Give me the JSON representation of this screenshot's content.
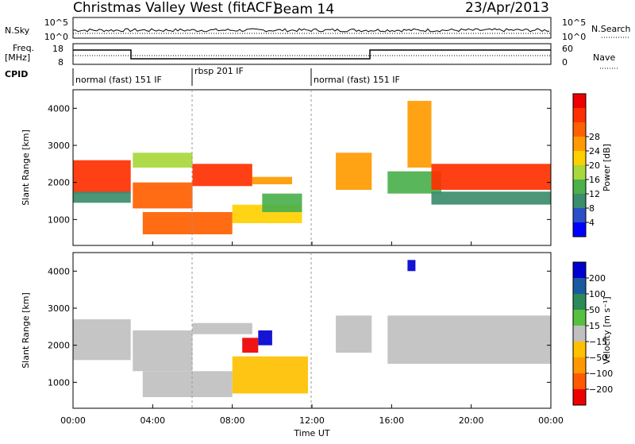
{
  "header": {
    "station": "Christmas Valley West (fitACF)",
    "beam": "Beam 14",
    "date": "23/Apr/2013"
  },
  "noise_panel": {
    "left_label": "N.Sky",
    "right_label": "N.Search",
    "left_ticks": [
      "10^5",
      "10^0"
    ],
    "right_ticks": [
      "10^5",
      "10^0"
    ]
  },
  "freq_panel": {
    "left_label_1": "Freq.",
    "left_label_2": "[MHz]",
    "right_label": "Nave",
    "left_ticks": [
      "18",
      "8"
    ],
    "right_ticks": [
      "60",
      "0"
    ]
  },
  "cpid": {
    "label": "CPID",
    "segments": [
      {
        "name": "normal (fast) 151 IF",
        "start_h": 0,
        "end_h": 6
      },
      {
        "name": "rbsp 201 IF",
        "start_h": 6,
        "end_h": 12
      },
      {
        "name": "normal (fast) 151 IF",
        "start_h": 12,
        "end_h": 24
      }
    ]
  },
  "axes": {
    "ylabel": "Slant Range [km]",
    "xlabel": "Time UT",
    "x_ticks": [
      "00:00",
      "04:00",
      "08:00",
      "12:00",
      "16:00",
      "20:00",
      "00:00"
    ],
    "y_ticks": [
      "1000",
      "2000",
      "3000",
      "4000"
    ]
  },
  "power_scale": {
    "label": "Power [dB]",
    "ticks": [
      "4",
      "8",
      "12",
      "16",
      "20",
      "24",
      "28"
    ],
    "colors": [
      "#0000ff",
      "#2a50c8",
      "#3c8c6e",
      "#4cb04c",
      "#a8d83c",
      "#ffd000",
      "#ff9a00",
      "#ff6000",
      "#ff3000",
      "#ee0000"
    ]
  },
  "velocity_scale": {
    "label": "Velocity [m s⁻¹]",
    "ticks": [
      "200",
      "100",
      "50",
      "15",
      "−15",
      "−50",
      "−100",
      "−200"
    ],
    "colors": [
      "#0000d0",
      "#1a5aa0",
      "#2a8a5a",
      "#58c040",
      "#c0c0c0",
      "#ffc000",
      "#ff9800",
      "#ff5a00",
      "#ee0000"
    ]
  },
  "chart_data": [
    {
      "type": "heatmap",
      "name": "Power",
      "x_unit": "hours UT",
      "xlim": [
        0,
        24
      ],
      "ylim": [
        300,
        4500
      ],
      "bands": [
        {
          "t0": 0.0,
          "t1": 2.9,
          "r0": 1700,
          "r1": 2600,
          "value": 26
        },
        {
          "t0": 0.0,
          "t1": 2.9,
          "r0": 1450,
          "r1": 1750,
          "value": 6
        },
        {
          "t0": 3.0,
          "t1": 6.0,
          "r0": 1300,
          "r1": 2000,
          "value": 22
        },
        {
          "t0": 3.0,
          "t1": 6.0,
          "r0": 2400,
          "r1": 2800,
          "value": 14
        },
        {
          "t0": 6.0,
          "t1": 9.0,
          "r0": 1900,
          "r1": 2500,
          "value": 24
        },
        {
          "t0": 9.0,
          "t1": 11.0,
          "r0": 1950,
          "r1": 2150,
          "value": 20
        },
        {
          "t0": 3.5,
          "t1": 8.0,
          "r0": 600,
          "r1": 1200,
          "value": 22
        },
        {
          "t0": 8.0,
          "t1": 11.5,
          "r0": 900,
          "r1": 1400,
          "value": 16
        },
        {
          "t0": 9.5,
          "t1": 11.5,
          "r0": 1200,
          "r1": 1700,
          "value": 10
        },
        {
          "t0": 13.2,
          "t1": 15.0,
          "r0": 1800,
          "r1": 2800,
          "value": 18
        },
        {
          "t0": 15.8,
          "t1": 18.5,
          "r0": 1700,
          "r1": 2300,
          "value": 10
        },
        {
          "t0": 16.8,
          "t1": 18.0,
          "r0": 2400,
          "r1": 4200,
          "value": 20
        },
        {
          "t0": 18.0,
          "t1": 24.0,
          "r0": 1800,
          "r1": 2500,
          "value": 26
        },
        {
          "t0": 18.0,
          "t1": 24.0,
          "r0": 1400,
          "r1": 1750,
          "value": 8
        }
      ]
    },
    {
      "type": "heatmap",
      "name": "Velocity",
      "x_unit": "hours UT",
      "xlim": [
        0,
        24
      ],
      "ylim": [
        300,
        4500
      ],
      "bands": [
        {
          "t0": 0.0,
          "t1": 2.9,
          "r0": 1600,
          "r1": 2700,
          "value": 0
        },
        {
          "t0": 3.0,
          "t1": 6.0,
          "r0": 1300,
          "r1": 2400,
          "value": 0
        },
        {
          "t0": 3.5,
          "t1": 8.0,
          "r0": 600,
          "r1": 1300,
          "value": 0
        },
        {
          "t0": 6.0,
          "t1": 9.0,
          "r0": 2300,
          "r1": 2600,
          "value": 0
        },
        {
          "t0": 8.0,
          "t1": 11.8,
          "r0": 700,
          "r1": 1700,
          "value": -40
        },
        {
          "t0": 8.5,
          "t1": 9.3,
          "r0": 1800,
          "r1": 2200,
          "value": -200
        },
        {
          "t0": 9.3,
          "t1": 10.0,
          "r0": 2000,
          "r1": 2400,
          "value": 150
        },
        {
          "t0": 13.2,
          "t1": 15.0,
          "r0": 1800,
          "r1": 2800,
          "value": 0
        },
        {
          "t0": 15.8,
          "t1": 24.0,
          "r0": 1500,
          "r1": 2800,
          "value": 0
        },
        {
          "t0": 16.8,
          "t1": 17.2,
          "r0": 4000,
          "r1": 4300,
          "value": 200
        }
      ]
    }
  ]
}
